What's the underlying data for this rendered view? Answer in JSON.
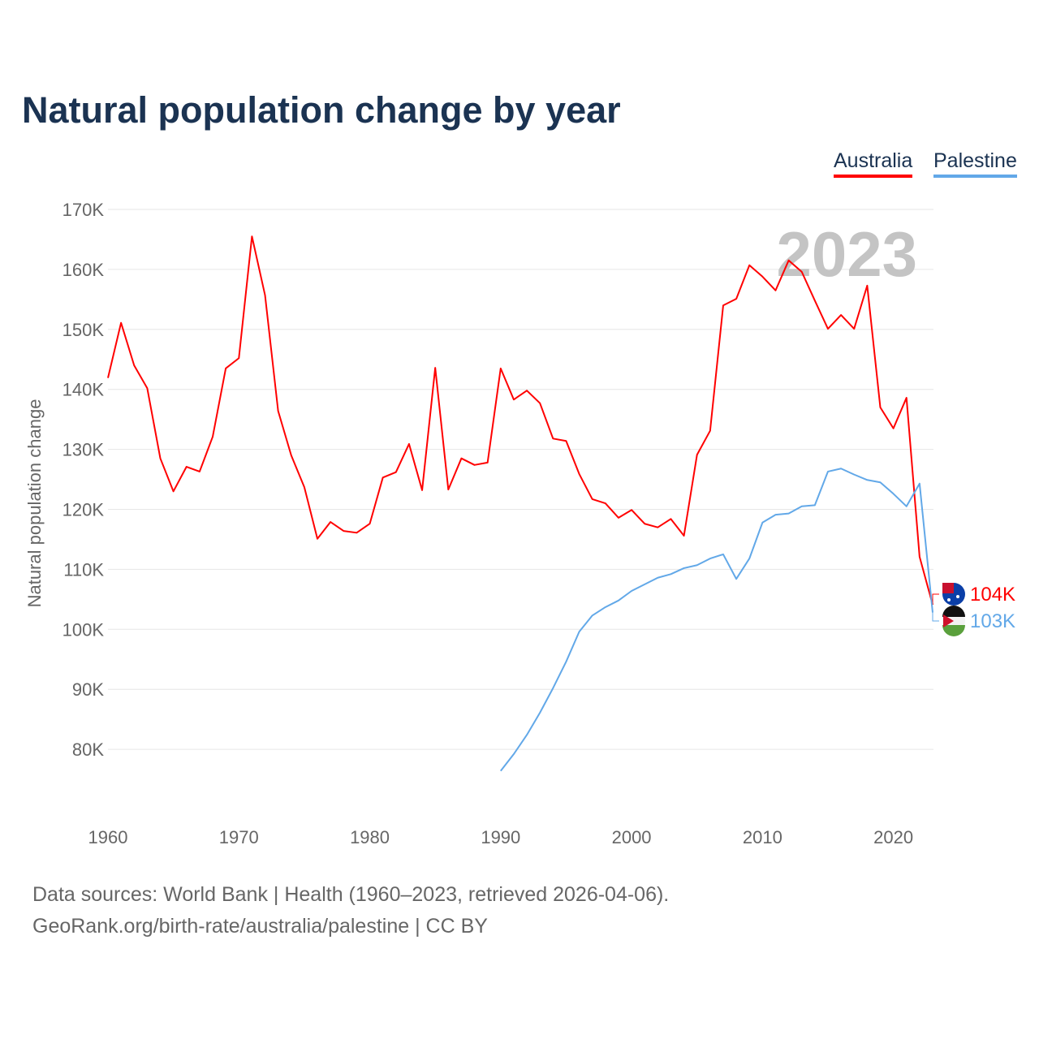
{
  "chart_data": {
    "type": "line",
    "title": "Natural population change by year",
    "ylabel": "Natural population change",
    "xlabel": "",
    "ylim": [
      72000,
      170000
    ],
    "xlim": [
      1960,
      2023
    ],
    "yticks": [
      {
        "v": 80000,
        "label": "80K"
      },
      {
        "v": 90000,
        "label": "90K"
      },
      {
        "v": 100000,
        "label": "100K"
      },
      {
        "v": 110000,
        "label": "110K"
      },
      {
        "v": 120000,
        "label": "120K"
      },
      {
        "v": 130000,
        "label": "130K"
      },
      {
        "v": 140000,
        "label": "140K"
      },
      {
        "v": 150000,
        "label": "150K"
      },
      {
        "v": 160000,
        "label": "160K"
      },
      {
        "v": 170000,
        "label": "170K"
      }
    ],
    "xticks": [
      {
        "v": 1960,
        "label": "1960"
      },
      {
        "v": 1970,
        "label": "1970"
      },
      {
        "v": 1980,
        "label": "1980"
      },
      {
        "v": 1990,
        "label": "1990"
      },
      {
        "v": 2000,
        "label": "2000"
      },
      {
        "v": 2010,
        "label": "2010"
      },
      {
        "v": 2020,
        "label": "2020"
      }
    ],
    "year_label": "2023",
    "grid": true,
    "legend_position": "top-right",
    "series": [
      {
        "name": "Australia",
        "color": "#ff0000",
        "end_label": "104K",
        "start": 1960,
        "values": [
          141900,
          151100,
          144000,
          140200,
          128500,
          123000,
          127100,
          126300,
          132100,
          143500,
          145200,
          165500,
          155700,
          136400,
          129000,
          123700,
          115100,
          117900,
          116400,
          116100,
          117600,
          125300,
          126200,
          130900,
          123200,
          143600,
          123300,
          128500,
          127400,
          127800,
          143500,
          138300,
          139800,
          137700,
          131800,
          131400,
          125900,
          121700,
          121000,
          118600,
          119900,
          117600,
          117000,
          118400,
          115600,
          129100,
          133100,
          154000,
          155100,
          160700,
          158800,
          156500,
          161500,
          159600,
          154800,
          150100,
          152400,
          150100,
          157300,
          137000,
          133500,
          138600,
          112100,
          104100
        ]
      },
      {
        "name": "Palestine",
        "color": "#62a8e8",
        "end_label": "103K",
        "start": 1990,
        "values": [
          76400,
          79200,
          82400,
          86100,
          90200,
          94600,
          99600,
          102300,
          103700,
          104800,
          106400,
          107500,
          108600,
          109200,
          110200,
          110700,
          111800,
          112500,
          108400,
          111800,
          117800,
          119100,
          119300,
          120500,
          120700,
          126300,
          126800,
          125800,
          124900,
          124500,
          122600,
          120500,
          124300,
          102800
        ]
      }
    ]
  },
  "sources": {
    "line1": "Data sources: World Bank | Health (1960–2023, retrieved 2026-04-06).",
    "line2": "GeoRank.org/birth-rate/australia/palestine | CC BY"
  }
}
